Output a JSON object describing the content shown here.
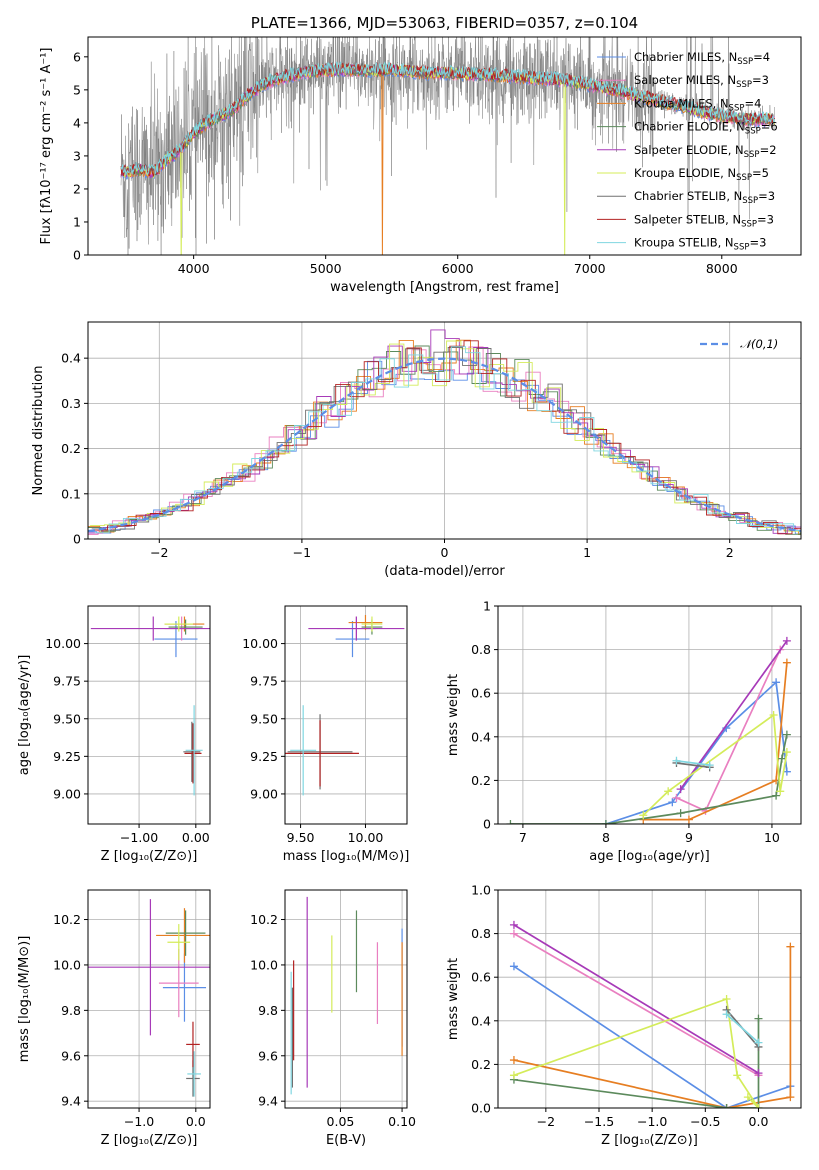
{
  "colors": {
    "chabrier_miles": "#5b8ee6",
    "salpeter_miles": "#e97fc0",
    "kroupa_miles": "#e67e22",
    "chabrier_elodie": "#5c8a5c",
    "salpeter_elodie": "#a73ab8",
    "kroupa_elodie": "#d4ec5a",
    "chabrier_stelib": "#707070",
    "salpeter_stelib": "#b22222",
    "kroupa_stelib": "#7fd6e0"
  },
  "chart_data": [
    {
      "id": "spectrum",
      "type": "line",
      "title": "PLATE=1366, MJD=53063, FIBERID=0357, z=0.104",
      "xlabel": "wavelength [Angstrom, rest frame]",
      "ylabel": "Flux [fλ10⁻¹⁷ erg cm⁻² s⁻¹ A⁻¹]",
      "xlim": [
        3200,
        8600
      ],
      "ylim": [
        0,
        6.6
      ],
      "xticks": [
        4000,
        5000,
        6000,
        7000,
        8000
      ],
      "yticks": [
        0,
        1,
        2,
        3,
        4,
        5,
        6
      ],
      "grid": false,
      "legend": "top-right",
      "legend_entries": [
        {
          "label": "Chabrier MILES, N",
          "sub": "SSP",
          "suffix": "=4",
          "color_key": "chabrier_miles"
        },
        {
          "label": "Salpeter MILES, N",
          "sub": "SSP",
          "suffix": "=3",
          "color_key": "salpeter_miles"
        },
        {
          "label": "Kroupa MILES, N",
          "sub": "SSP",
          "suffix": "=4",
          "color_key": "kroupa_miles"
        },
        {
          "label": "Chabrier ELODIE, N",
          "sub": "SSP",
          "suffix": "=6",
          "color_key": "chabrier_elodie"
        },
        {
          "label": "Salpeter ELODIE, N",
          "sub": "SSP",
          "suffix": "=2",
          "color_key": "salpeter_elodie"
        },
        {
          "label": "Kroupa ELODIE, N",
          "sub": "SSP",
          "suffix": "=5",
          "color_key": "kroupa_elodie"
        },
        {
          "label": "Chabrier STELIB, N",
          "sub": "SSP",
          "suffix": "=3",
          "color_key": "chabrier_stelib"
        },
        {
          "label": "Salpeter STELIB, N",
          "sub": "SSP",
          "suffix": "=3",
          "color_key": "salpeter_stelib"
        },
        {
          "label": "Kroupa STELIB, N",
          "sub": "SSP",
          "suffix": "=3",
          "color_key": "kroupa_stelib"
        }
      ],
      "continuum": {
        "x": [
          3450,
          3600,
          3700,
          3800,
          3900,
          4000,
          4100,
          4200,
          4300,
          4400,
          4500,
          4600,
          4800,
          5000,
          5200,
          5500,
          5800,
          6000,
          6200,
          6400,
          6600,
          6800,
          7000,
          7200,
          7400,
          7600,
          7800,
          8000,
          8200,
          8400
        ],
        "y": [
          2.5,
          2.6,
          2.5,
          2.9,
          3.2,
          3.7,
          4.0,
          4.2,
          4.4,
          4.8,
          5.1,
          5.3,
          5.5,
          5.6,
          5.6,
          5.6,
          5.5,
          5.5,
          5.45,
          5.4,
          5.35,
          5.3,
          5.15,
          5.0,
          4.8,
          4.6,
          4.4,
          4.2,
          4.1,
          4.1
        ]
      }
    },
    {
      "id": "residuals",
      "type": "line",
      "xlabel": "(data-model)/error",
      "ylabel": "Normed distribution",
      "xlim": [
        -2.5,
        2.5
      ],
      "ylim": [
        0,
        0.48
      ],
      "xticks": [
        -2,
        -1,
        0,
        1,
        2
      ],
      "yticks": [
        0.0,
        0.1,
        0.2,
        0.3,
        0.4
      ],
      "grid": true,
      "legend": "top-right",
      "gaussian_label": "𝒩(0,1)",
      "gaussian_color": "#5b8ee6"
    },
    {
      "id": "age_vs_z",
      "type": "scatter",
      "xlabel": "Z [log₁₀(Z/Z⊙)]",
      "ylabel": "age  [log₁₀(age/yr)]",
      "xlim": [
        -1.9,
        0.25
      ],
      "ylim": [
        8.8,
        10.25
      ],
      "xticks": [
        -1,
        0
      ],
      "yticks": [
        9.0,
        9.25,
        9.5,
        9.75,
        10.0
      ],
      "grid": true,
      "points": [
        {
          "x": -0.35,
          "y": 10.03,
          "ex": 0.38,
          "ey": 0.12,
          "c": "chabrier_miles"
        },
        {
          "x": -0.25,
          "y": 10.1,
          "ex": 0.3,
          "ey": 0.08,
          "c": "salpeter_miles"
        },
        {
          "x": -0.2,
          "y": 10.13,
          "ex": 0.35,
          "ey": 0.05,
          "c": "kroupa_miles"
        },
        {
          "x": -0.18,
          "y": 10.11,
          "ex": 0.3,
          "ey": 0.05,
          "c": "chabrier_elodie"
        },
        {
          "x": -0.75,
          "y": 10.1,
          "ex": 1.1,
          "ey": 0.08,
          "c": "salpeter_elodie"
        },
        {
          "x": -0.3,
          "y": 10.13,
          "ex": 0.25,
          "ey": 0.05,
          "c": "kroupa_elodie"
        },
        {
          "x": -0.07,
          "y": 9.28,
          "ex": 0.15,
          "ey": 0.2,
          "c": "chabrier_stelib"
        },
        {
          "x": -0.05,
          "y": 9.27,
          "ex": 0.15,
          "ey": 0.2,
          "c": "salpeter_stelib"
        },
        {
          "x": -0.03,
          "y": 9.29,
          "ex": 0.15,
          "ey": 0.3,
          "c": "kroupa_stelib"
        }
      ]
    },
    {
      "id": "age_vs_mass",
      "type": "scatter",
      "xlabel": "mass [log₁₀(M/M⊙)]",
      "ylabel": "",
      "xlim": [
        9.38,
        10.32
      ],
      "ylim": [
        8.8,
        10.25
      ],
      "xticks": [
        9.5,
        10.0
      ],
      "yticks": [
        9.0,
        9.25,
        9.5,
        9.75,
        10.0
      ],
      "grid": true,
      "points": [
        {
          "x": 9.9,
          "y": 10.03,
          "ex": 0.13,
          "ey": 0.12,
          "c": "chabrier_miles"
        },
        {
          "x": 9.93,
          "y": 10.1,
          "ex": 0.15,
          "ey": 0.08,
          "c": "salpeter_miles"
        },
        {
          "x": 10.0,
          "y": 10.14,
          "ex": 0.13,
          "ey": 0.05,
          "c": "kroupa_miles"
        },
        {
          "x": 10.05,
          "y": 10.11,
          "ex": 0.08,
          "ey": 0.05,
          "c": "chabrier_elodie"
        },
        {
          "x": 9.93,
          "y": 10.1,
          "ex": 0.37,
          "ey": 0.08,
          "c": "salpeter_elodie"
        },
        {
          "x": 10.05,
          "y": 10.13,
          "ex": 0.08,
          "ey": 0.05,
          "c": "kroupa_elodie"
        },
        {
          "x": 9.65,
          "y": 9.28,
          "ex": 0.25,
          "ey": 0.25,
          "c": "chabrier_stelib"
        },
        {
          "x": 9.65,
          "y": 9.27,
          "ex": 0.3,
          "ey": 0.22,
          "c": "salpeter_stelib"
        },
        {
          "x": 9.52,
          "y": 9.29,
          "ex": 0.1,
          "ey": 0.3,
          "c": "kroupa_stelib"
        }
      ]
    },
    {
      "id": "weight_vs_age",
      "type": "line",
      "xlabel": "age  [log₁₀(age/yr)]",
      "ylabel": "mass weight",
      "xlim": [
        6.7,
        10.35
      ],
      "ylim": [
        0,
        1.0
      ],
      "xticks": [
        7,
        8,
        9,
        10
      ],
      "yticks": [
        0.0,
        0.2,
        0.4,
        0.6,
        0.8,
        1.0
      ],
      "grid": true,
      "series": [
        {
          "c": "chabrier_miles",
          "x": [
            8.0,
            8.8,
            9.45,
            10.05,
            10.18
          ],
          "y": [
            0.0,
            0.1,
            0.44,
            0.65,
            0.24
          ]
        },
        {
          "c": "salpeter_miles",
          "x": [
            8.85,
            9.2,
            10.1
          ],
          "y": [
            0.12,
            0.06,
            0.8
          ]
        },
        {
          "c": "kroupa_miles",
          "x": [
            8.45,
            9.0,
            10.05,
            10.18
          ],
          "y": [
            0.02,
            0.02,
            0.2,
            0.74
          ]
        },
        {
          "c": "chabrier_elodie",
          "x": [
            6.85,
            8.0,
            8.9,
            10.05,
            10.12,
            10.18
          ],
          "y": [
            0.0,
            0.0,
            0.05,
            0.13,
            0.3,
            0.41
          ]
        },
        {
          "c": "salpeter_elodie",
          "x": [
            8.9,
            10.18
          ],
          "y": [
            0.16,
            0.84
          ]
        },
        {
          "c": "kroupa_elodie",
          "x": [
            8.45,
            8.75,
            10.02,
            10.1,
            10.18
          ],
          "y": [
            0.04,
            0.15,
            0.5,
            0.15,
            0.33
          ]
        },
        {
          "c": "chabrier_stelib",
          "x": [
            8.85,
            9.25
          ],
          "y": [
            0.28,
            0.26
          ]
        },
        {
          "c": "kroupa_stelib",
          "x": [
            8.85,
            9.25
          ],
          "y": [
            0.29,
            0.27
          ]
        }
      ]
    },
    {
      "id": "mass_vs_z",
      "type": "scatter",
      "xlabel": "Z [log₁₀(Z/Z⊙)]",
      "ylabel": "mass [log₁₀(M/M⊙)]",
      "xlim": [
        -1.9,
        0.25
      ],
      "ylim": [
        9.37,
        10.33
      ],
      "xticks": [
        -1,
        0
      ],
      "yticks": [
        9.4,
        9.6,
        9.8,
        10.0,
        10.2
      ],
      "grid": true,
      "points": [
        {
          "x": -0.2,
          "y": 9.9,
          "ex": 0.38,
          "ey": 0.15,
          "c": "chabrier_miles"
        },
        {
          "x": -0.3,
          "y": 9.92,
          "ex": 0.35,
          "ey": 0.15,
          "c": "salpeter_miles"
        },
        {
          "x": -0.2,
          "y": 10.13,
          "ex": 0.5,
          "ey": 0.12,
          "c": "kroupa_miles"
        },
        {
          "x": -0.18,
          "y": 10.14,
          "ex": 0.35,
          "ey": 0.1,
          "c": "chabrier_elodie"
        },
        {
          "x": -0.8,
          "y": 9.99,
          "ex": 1.1,
          "ey": 0.3,
          "c": "salpeter_elodie"
        },
        {
          "x": -0.3,
          "y": 10.1,
          "ex": 0.2,
          "ey": 0.08,
          "c": "kroupa_elodie"
        },
        {
          "x": -0.05,
          "y": 9.5,
          "ex": 0.12,
          "ey": 0.08,
          "c": "chabrier_stelib"
        },
        {
          "x": -0.05,
          "y": 9.65,
          "ex": 0.12,
          "ey": 0.1,
          "c": "salpeter_stelib"
        },
        {
          "x": -0.03,
          "y": 9.52,
          "ex": 0.12,
          "ey": 0.1,
          "c": "kroupa_stelib"
        }
      ]
    },
    {
      "id": "mass_vs_ebv",
      "type": "scatter",
      "xlabel": "E(B-V)",
      "ylabel": "",
      "xlim": [
        0.005,
        0.104
      ],
      "ylim": [
        9.37,
        10.33
      ],
      "xticks": [
        0.05,
        0.1
      ],
      "yticks": [
        9.4,
        9.6,
        9.8,
        10.0,
        10.2
      ],
      "grid": true,
      "points": [
        {
          "x": 0.1,
          "y": 9.9,
          "ey": 0.26,
          "c": "chabrier_miles"
        },
        {
          "x": 0.08,
          "y": 9.92,
          "ey": 0.18,
          "c": "salpeter_miles"
        },
        {
          "x": 0.1,
          "y": 9.85,
          "ey": 0.25,
          "c": "kroupa_miles"
        },
        {
          "x": 0.063,
          "y": 10.06,
          "ey": 0.18,
          "c": "chabrier_elodie"
        },
        {
          "x": 0.023,
          "y": 9.88,
          "ey": 0.42,
          "c": "salpeter_elodie"
        },
        {
          "x": 0.043,
          "y": 9.96,
          "ey": 0.17,
          "c": "kroupa_elodie"
        },
        {
          "x": 0.011,
          "y": 9.68,
          "ey": 0.22,
          "c": "chabrier_stelib"
        },
        {
          "x": 0.012,
          "y": 9.8,
          "ey": 0.22,
          "c": "salpeter_stelib"
        },
        {
          "x": 0.01,
          "y": 9.7,
          "ey": 0.27,
          "c": "kroupa_stelib"
        }
      ]
    },
    {
      "id": "weight_vs_z",
      "type": "line",
      "xlabel": "Z [log₁₀(Z/Z⊙)]",
      "ylabel": "mass weight",
      "xlim": [
        -2.45,
        0.4
      ],
      "ylim": [
        0,
        1.0
      ],
      "xticks": [
        -2.0,
        -1.5,
        -1.0,
        -0.5,
        0.0
      ],
      "yticks": [
        0.0,
        0.2,
        0.4,
        0.6,
        0.8,
        1.0
      ],
      "grid": true,
      "series": [
        {
          "c": "chabrier_miles",
          "x": [
            -2.3,
            -0.3,
            0.3
          ],
          "y": [
            0.65,
            0.0,
            0.1
          ]
        },
        {
          "c": "salpeter_miles",
          "x": [
            -2.3,
            0.0
          ],
          "y": [
            0.8,
            0.15
          ]
        },
        {
          "c": "kroupa_miles",
          "x": [
            -2.3,
            -0.3,
            0.3,
            0.3
          ],
          "y": [
            0.22,
            0.0,
            0.05,
            0.74
          ]
        },
        {
          "c": "chabrier_elodie",
          "x": [
            -2.3,
            -0.3,
            0.0,
            0.0
          ],
          "y": [
            0.13,
            0.0,
            0.0,
            0.41
          ]
        },
        {
          "c": "salpeter_elodie",
          "x": [
            -2.3,
            0.0
          ],
          "y": [
            0.84,
            0.16
          ]
        },
        {
          "c": "kroupa_elodie",
          "x": [
            -2.3,
            -0.3,
            -0.2,
            0.0,
            -0.1
          ],
          "y": [
            0.15,
            0.5,
            0.15,
            0.0,
            0.05
          ]
        },
        {
          "c": "chabrier_stelib",
          "x": [
            -0.3,
            0.0
          ],
          "y": [
            0.45,
            0.28
          ]
        },
        {
          "c": "kroupa_stelib",
          "x": [
            -0.3,
            0.0
          ],
          "y": [
            0.43,
            0.3
          ]
        }
      ]
    }
  ]
}
